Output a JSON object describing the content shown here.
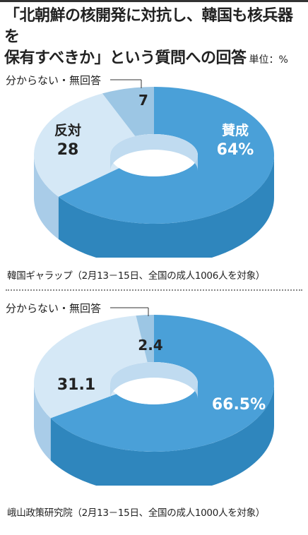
{
  "title": {
    "line1": "「北朝鮮の核開発に対抗し、韓国も核兵器を",
    "line2": "保有すべきか」という質問への回答",
    "unit": "単位：%"
  },
  "colors": {
    "support_top": "#4aa0d8",
    "support_side": "#2f86bd",
    "oppose_top": "#d5e8f6",
    "oppose_side": "#a9cce8",
    "unknown_top": "#9cc6e4",
    "unknown_side": "#5e91b4",
    "hole": "#ffffff"
  },
  "chart_data": [
    {
      "type": "pie",
      "source": "韓国ギャラップ（2月13－15日、全国の成人1006人を対象）",
      "categories": [
        "賛成",
        "反対",
        "分からない・無回答"
      ],
      "values": [
        64,
        28,
        7
      ],
      "labels": {
        "support": "賛成",
        "support_value": "64%",
        "oppose": "反対",
        "oppose_value": "28",
        "unknown": "分からない・無回答",
        "unknown_value": "7"
      }
    },
    {
      "type": "pie",
      "source": "峨山政策研究院（2月13－15日、全国の成人1000人を対象）",
      "categories": [
        "賛成",
        "反対",
        "分からない・無回答"
      ],
      "values": [
        66.5,
        31.1,
        2.4
      ],
      "labels": {
        "support": "",
        "support_value": "66.5%",
        "oppose": "",
        "oppose_value": "31.1",
        "unknown": "分からない・無回答",
        "unknown_value": "2.4"
      }
    }
  ]
}
